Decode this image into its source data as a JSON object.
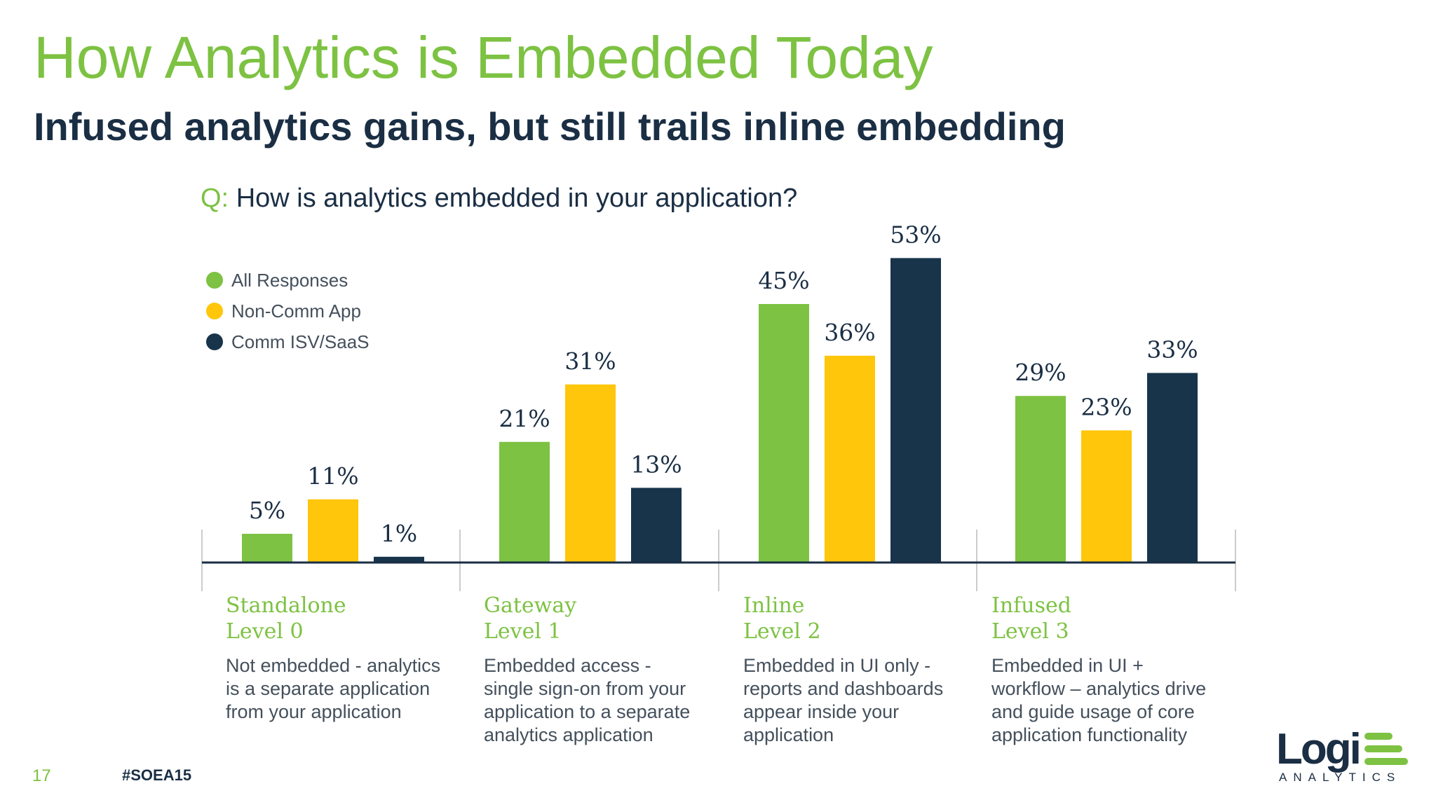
{
  "slide": {
    "title": "How Analytics is Embedded Today",
    "subtitle": "Infused analytics gains, but still trails inline embedding",
    "question_prefix": "Q:",
    "question": "How is analytics embedded in your application?",
    "page_number": "17",
    "hashtag": "#SOEA15"
  },
  "logo": {
    "text": "Logi",
    "subtext": "ANALYTICS"
  },
  "colors": {
    "green": "#7dc242",
    "yellow": "#ffc60b",
    "navy": "#17344a",
    "axis": "#1a2e44",
    "divider": "#cccccc"
  },
  "legend": [
    {
      "label": "All Responses",
      "color": "#7dc242"
    },
    {
      "label": "Non-Comm App",
      "color": "#ffc60b"
    },
    {
      "label": "Comm ISV/SaaS",
      "color": "#17344a"
    }
  ],
  "categories": [
    {
      "name_line1": "Standalone",
      "name_line2": "Level 0",
      "desc": [
        "Not embedded - analytics",
        "is a separate application",
        "from your application"
      ]
    },
    {
      "name_line1": "Gateway",
      "name_line2": "Level 1",
      "desc": [
        "Embedded access -",
        "single sign-on from your",
        "application to a separate",
        "analytics application"
      ]
    },
    {
      "name_line1": "Inline",
      "name_line2": "Level 2",
      "desc": [
        "Embedded in UI only -",
        "reports and dashboards",
        "appear inside your",
        "application"
      ]
    },
    {
      "name_line1": "Infused",
      "name_line2": "Level 3",
      "desc": [
        "Embedded in UI +",
        "workflow – analytics drive",
        "and guide usage of core",
        "application functionality"
      ]
    }
  ],
  "chart_data": {
    "type": "bar",
    "title": "How is analytics embedded in your application?",
    "categories": [
      "Standalone Level 0",
      "Gateway Level 1",
      "Inline Level 2",
      "Infused Level 3"
    ],
    "series": [
      {
        "name": "All Responses",
        "color": "#7dc242",
        "values": [
          5,
          21,
          45,
          29
        ],
        "labels": [
          "5%",
          "21%",
          "45%",
          "29%"
        ]
      },
      {
        "name": "Non-Comm App",
        "color": "#ffc60b",
        "values": [
          11,
          31,
          36,
          23
        ],
        "labels": [
          "11%",
          "31%",
          "36%",
          "23%"
        ]
      },
      {
        "name": "Comm ISV/SaaS",
        "color": "#17344a",
        "values": [
          1,
          13,
          53,
          33
        ],
        "labels": [
          "1%",
          "13%",
          "53%",
          "33%"
        ]
      }
    ],
    "unit": "%",
    "ylim": [
      0,
      53
    ],
    "grid": false,
    "legend_position": "top-left"
  }
}
